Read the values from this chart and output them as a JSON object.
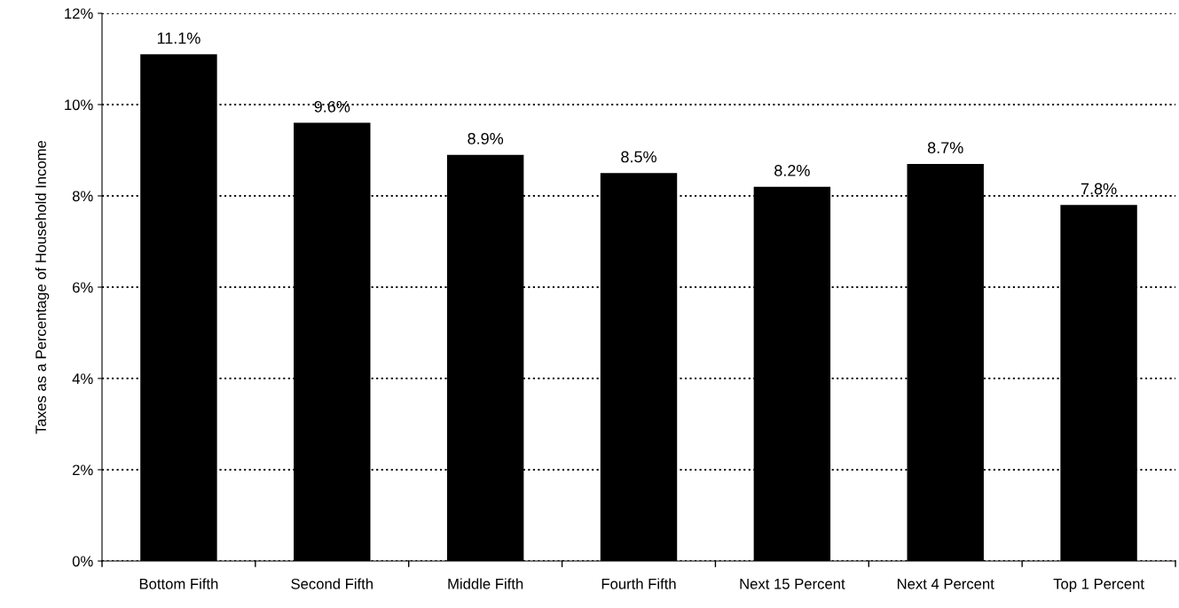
{
  "chart_data": {
    "type": "bar",
    "ylabel": "Taxes as a Percentage of Household Income",
    "categories": [
      "Bottom Fifth",
      "Second Fifth",
      "Middle Fifth",
      "Fourth Fifth",
      "Next 15 Percent",
      "Next 4 Percent",
      "Top 1 Percent"
    ],
    "values": [
      11.1,
      9.6,
      8.9,
      8.5,
      8.2,
      8.7,
      7.8
    ],
    "value_labels": [
      "11.1%",
      "9.6%",
      "8.9%",
      "8.5%",
      "8.2%",
      "8.7%",
      "7.8%"
    ],
    "color": "#000000",
    "ylim": [
      0,
      12
    ],
    "yticks": [
      {
        "value": 0,
        "label": "0%"
      },
      {
        "value": 2,
        "label": "2%"
      },
      {
        "value": 4,
        "label": "4%"
      },
      {
        "value": 6,
        "label": "6%"
      },
      {
        "value": 8,
        "label": "8%"
      },
      {
        "value": 10,
        "label": "10%"
      },
      {
        "value": 12,
        "label": "12%"
      }
    ],
    "grid": "y",
    "line_style": "dotted"
  }
}
